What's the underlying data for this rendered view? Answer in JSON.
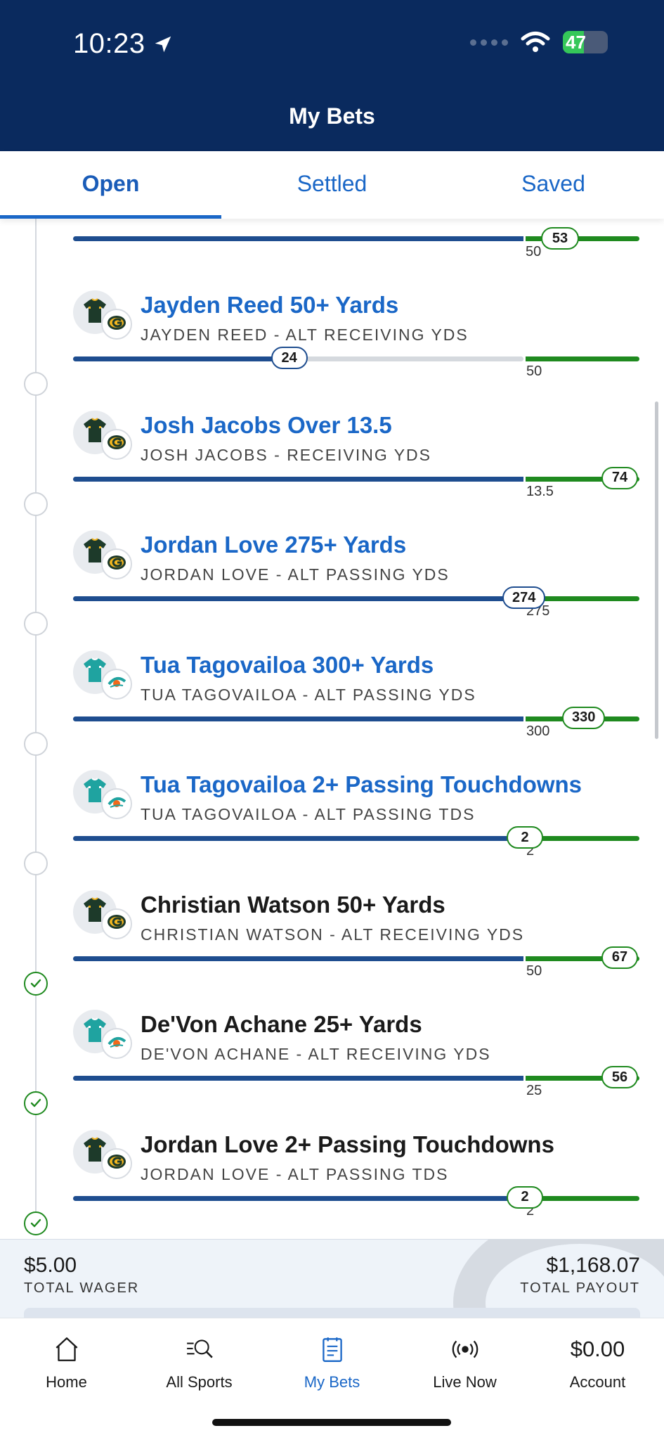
{
  "status_bar": {
    "time": "10:23",
    "battery": "47"
  },
  "header": {
    "title": "My Bets"
  },
  "tabs": [
    {
      "label": "Open",
      "active": true
    },
    {
      "label": "Settled",
      "active": false
    },
    {
      "label": "Saved",
      "active": false
    }
  ],
  "top_partial": {
    "value": "53",
    "threshold": "50"
  },
  "legs": [
    {
      "title": "Jayden Reed 50+ Yards",
      "subtitle": "JAYDEN REED - ALT RECEIVING YDS",
      "current": "24",
      "threshold": "50",
      "status": "open",
      "team": "GB",
      "progress": 0.48
    },
    {
      "title": "Josh Jacobs Over 13.5",
      "subtitle": "JOSH JACOBS - RECEIVING YDS",
      "current": "74",
      "threshold": "13.5",
      "status": "open",
      "team": "GB",
      "progress": 1.0
    },
    {
      "title": "Jordan Love 275+ Yards",
      "subtitle": "JORDAN LOVE - ALT PASSING YDS",
      "current": "274",
      "threshold": "275",
      "status": "open",
      "team": "GB",
      "progress": 0.996
    },
    {
      "title": "Tua Tagovailoa 300+ Yards",
      "subtitle": "TUA TAGOVAILOA - ALT PASSING YDS",
      "current": "330",
      "threshold": "300",
      "status": "open",
      "team": "MIA",
      "progress": 1.0
    },
    {
      "title": "Tua Tagovailoa 2+ Passing Touchdowns",
      "subtitle": "TUA TAGOVAILOA - ALT PASSING TDS",
      "current": "2",
      "threshold": "2",
      "status": "open",
      "team": "MIA",
      "progress": 1.0
    },
    {
      "title": "Christian Watson 50+ Yards",
      "subtitle": "CHRISTIAN WATSON - ALT RECEIVING YDS",
      "current": "67",
      "threshold": "50",
      "status": "won",
      "team": "GB",
      "progress": 1.0
    },
    {
      "title": "De'Von Achane 25+ Yards",
      "subtitle": "DE'VON ACHANE - ALT RECEIVING YDS",
      "current": "56",
      "threshold": "25",
      "status": "won",
      "team": "MIA",
      "progress": 1.0
    },
    {
      "title": "Jordan Love 2+ Passing Touchdowns",
      "subtitle": "JORDAN LOVE - ALT PASSING TDS",
      "current": "2",
      "threshold": "2",
      "status": "won",
      "team": "GB",
      "progress": 1.0
    }
  ],
  "totals": {
    "wager_value": "$5.00",
    "wager_label": "TOTAL WAGER",
    "payout_value": "$1,168.07",
    "payout_label": "TOTAL PAYOUT"
  },
  "bottom_nav": [
    {
      "label": "Home",
      "icon": "home-icon"
    },
    {
      "label": "All Sports",
      "icon": "search-sports-icon"
    },
    {
      "label": "My Bets",
      "icon": "bet-slip-icon",
      "active": true
    },
    {
      "label": "Live Now",
      "icon": "live-broadcast-icon"
    },
    {
      "label": "Account",
      "amount": "$0.00"
    }
  ],
  "colors": {
    "header_bg": "#0a2a5e",
    "accent": "#1a67c7",
    "progress": "#1e4d8f",
    "win": "#1f8a1f"
  }
}
